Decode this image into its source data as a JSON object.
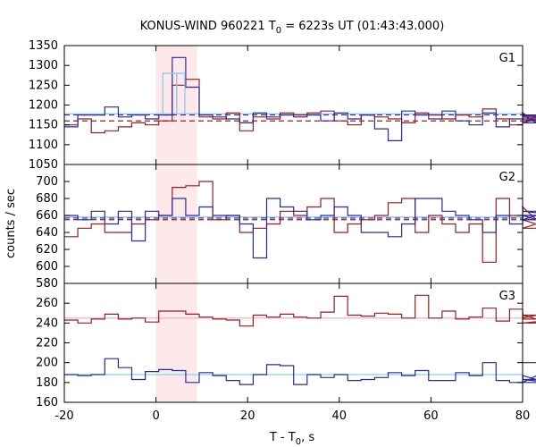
{
  "chart_data": {
    "type": "line",
    "title": "KONUS-WIND 960221 T",
    "title_sub": "0",
    "title_rest": " = 6223s UT (01:43:43.000)",
    "xlabel": "T - T",
    "xlabel_sub": "0",
    "xlabel_rest": ", s",
    "ylabel": "counts / sec",
    "xlim": [
      -20,
      80
    ],
    "x_ticks": [
      -20,
      0,
      20,
      40,
      60,
      80
    ],
    "highlight_interval": [
      0,
      9
    ],
    "highlight_color": "#fde8ea",
    "colors": {
      "red": "#9c1c1c",
      "blue": "#2a2aa0",
      "lightblue": "#8fc4e8",
      "pink": "#f4a9bd",
      "cyan": "#7fd6e6"
    },
    "panels": [
      {
        "label": "G1",
        "ylim": [
          1050,
          1350
        ],
        "y_ticks": [
          1050,
          1100,
          1150,
          1200,
          1250,
          1300,
          1350
        ],
        "bin_start": -20,
        "bin_width": 2.944,
        "series": [
          {
            "color": "red",
            "values": [
              1150,
              1165,
              1130,
              1135,
              1145,
              1155,
              1150,
              1160,
              1250,
              1265,
              1170,
              1165,
              1180,
              1135,
              1170,
              1165,
              1180,
              1175,
              1180,
              1185,
              1160,
              1150,
              1175,
              1170,
              1165,
              1155,
              1180,
              1175,
              1165,
              1175,
              1170,
              1190,
              1165,
              1150,
              1180,
              1160,
              1170,
              1165
            ]
          },
          {
            "color": "blue",
            "values": [
              1145,
              1175,
              1175,
              1195,
              1170,
              1175,
              1165,
              1175,
              1320,
              1245,
              1175,
              1170,
              1165,
              1155,
              1180,
              1170,
              1175,
              1170,
              1175,
              1160,
              1180,
              1165,
              1175,
              1140,
              1110,
              1185,
              1175,
              1165,
              1185,
              1160,
              1150,
              1180,
              1145,
              1165,
              1175,
              1155,
              1175,
              1165
            ]
          }
        ],
        "detail_bins": [
          {
            "color": "lightblue",
            "x": [
              1.5,
              4.5
            ],
            "y": 1280
          },
          {
            "color": "lightblue",
            "x": [
              4.5,
              6.3
            ],
            "y": 1280
          }
        ],
        "backgrounds": [
          {
            "color": "red",
            "y": 1160,
            "dashed": true
          },
          {
            "color": "blue",
            "y": 1175,
            "dashed": true
          },
          {
            "color": "lightblue",
            "y": 1178,
            "dashed": false
          }
        ]
      },
      {
        "label": "G2",
        "ylim": [
          580,
          720
        ],
        "y_ticks": [
          580,
          600,
          620,
          640,
          660,
          680,
          700
        ],
        "bin_start": -20,
        "bin_width": 2.944,
        "series": [
          {
            "color": "red",
            "values": [
              635,
              645,
              650,
              640,
              640,
              650,
              655,
              660,
              693,
              695,
              700,
              655,
              660,
              640,
              645,
              650,
              665,
              660,
              670,
              680,
              640,
              650,
              655,
              660,
              675,
              680,
              640,
              660,
              650,
              640,
              650,
              605,
              680,
              660,
              670,
              655,
              645,
              660
            ]
          },
          {
            "color": "blue",
            "values": [
              660,
              655,
              665,
              650,
              665,
              630,
              665,
              660,
              680,
              660,
              670,
              660,
              660,
              650,
              610,
              680,
              670,
              665,
              655,
              660,
              670,
              660,
              640,
              640,
              635,
              650,
              680,
              680,
              665,
              660,
              655,
              640,
              660,
              650,
              660,
              655,
              665,
              660
            ]
          }
        ],
        "backgrounds": [
          {
            "color": "red",
            "y": 655,
            "dashed": true
          },
          {
            "color": "blue",
            "y": 657,
            "dashed": true
          },
          {
            "color": "lightblue",
            "y": 658,
            "dashed": false
          }
        ]
      },
      {
        "label": "G3",
        "ylim": [
          160,
          280
        ],
        "y_ticks": [
          160,
          180,
          200,
          220,
          240,
          260
        ],
        "bin_start": -20,
        "bin_width": 2.944,
        "series": [
          {
            "color": "red",
            "values": [
              243,
              240,
              244,
              249,
              244,
              245,
              241,
              252,
              252,
              249,
              246,
              244,
              243,
              237,
              248,
              246,
              249,
              246,
              245,
              251,
              267,
              248,
              247,
              250,
              249,
              245,
              268,
              245,
              252,
              244,
              246,
              255,
              242,
              254,
              245,
              248,
              240,
              244
            ]
          },
          {
            "color": "blue",
            "values": [
              188,
              187,
              188,
              204,
              195,
              183,
              191,
              193,
              192,
              180,
              190,
              187,
              182,
              178,
              188,
              198,
              197,
              178,
              188,
              185,
              188,
              182,
              183,
              185,
              190,
              187,
              192,
              182,
              182,
              190,
              187,
              200,
              182,
              180,
              187,
              183,
              180,
              200
            ]
          }
        ],
        "backgrounds": [
          {
            "color": "pink",
            "y": 245,
            "dashed": false
          },
          {
            "color": "cyan",
            "y": 188,
            "dashed": false
          }
        ]
      }
    ]
  }
}
